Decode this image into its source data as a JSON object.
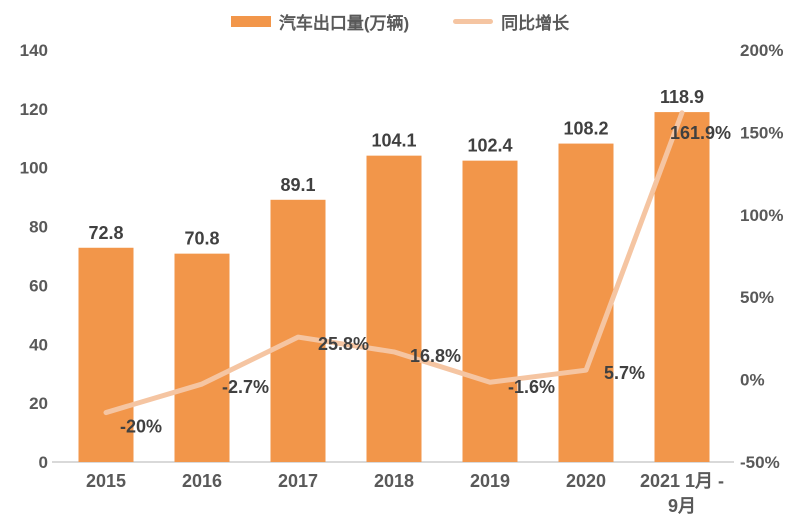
{
  "chart_data": {
    "type": "combo",
    "title": "",
    "categories": [
      "2015",
      "2016",
      "2017",
      "2018",
      "2019",
      "2020",
      "2021 1月-9月"
    ],
    "categories_display": [
      [
        "2015"
      ],
      [
        "2016"
      ],
      [
        "2017"
      ],
      [
        "2018"
      ],
      [
        "2019"
      ],
      [
        "2020"
      ],
      [
        "2021 1月 -",
        "9月"
      ]
    ],
    "series": [
      {
        "name": "汽车出口量(万辆)",
        "type": "bar",
        "axis": "left",
        "values": [
          72.8,
          70.8,
          89.1,
          104.1,
          102.4,
          108.2,
          118.9
        ],
        "labels": [
          "72.8",
          "70.8",
          "89.1",
          "104.1",
          "102.4",
          "108.2",
          "118.9"
        ],
        "color": "#F2964A"
      },
      {
        "name": "同比增长",
        "type": "line",
        "axis": "right",
        "values": [
          -20,
          -2.7,
          25.8,
          16.8,
          -1.6,
          5.7,
          161.9
        ],
        "labels": [
          "-20%",
          "-2.7%",
          "25.8%",
          "16.8%",
          "-1.6%",
          "5.7%",
          "161.9%"
        ],
        "color": "#F5C5A2"
      }
    ],
    "left_axis": {
      "min": 0,
      "max": 140,
      "step": 20,
      "ticks": [
        "0",
        "20",
        "40",
        "60",
        "80",
        "100",
        "120",
        "140"
      ]
    },
    "right_axis": {
      "min": -50,
      "max": 200,
      "step": 50,
      "ticks": [
        "-50%",
        "0%",
        "50%",
        "100%",
        "150%",
        "200%"
      ]
    },
    "legend_position": "top",
    "grid": false,
    "colors": {
      "label_text": "#404040",
      "axis_text": "#595959",
      "axis_line": "#D9D9D9",
      "background": "#FFFFFF"
    }
  }
}
